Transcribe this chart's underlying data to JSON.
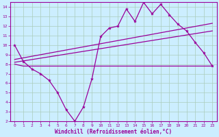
{
  "background_color": "#cceeff",
  "grid_color": "#aaccbb",
  "line_color": "#990099",
  "xlabel": "Windchill (Refroidissement éolien,°C)",
  "xlim": [
    -0.5,
    23.5
  ],
  "ylim": [
    2,
    14.5
  ],
  "xticks": [
    0,
    1,
    2,
    3,
    4,
    5,
    6,
    7,
    8,
    9,
    10,
    11,
    12,
    13,
    14,
    15,
    16,
    17,
    18,
    19,
    20,
    21,
    22,
    23
  ],
  "yticks": [
    2,
    3,
    4,
    5,
    6,
    7,
    8,
    9,
    10,
    11,
    12,
    13,
    14
  ],
  "line1_x": [
    0,
    1,
    2,
    3,
    4,
    5,
    6,
    7,
    8,
    9,
    10,
    11,
    12,
    13,
    14,
    15,
    16,
    17,
    18,
    19,
    20,
    21,
    22,
    23
  ],
  "line1_y": [
    10.0,
    8.3,
    7.5,
    7.0,
    6.3,
    5.0,
    3.2,
    2.0,
    3.5,
    6.5,
    10.9,
    11.8,
    12.0,
    13.8,
    12.5,
    14.5,
    13.3,
    14.3,
    13.2,
    12.2,
    11.5,
    10.3,
    9.2,
    7.8
  ],
  "line2_x": [
    0,
    1,
    2,
    3,
    4,
    5,
    6,
    7,
    8,
    9,
    10,
    11,
    12,
    13,
    14,
    15,
    16,
    17,
    18,
    19,
    20,
    21,
    22,
    23
  ],
  "line2_y": [
    8.0,
    7.8,
    7.8,
    7.8,
    7.8,
    7.8,
    7.8,
    7.8,
    7.8,
    7.8,
    7.8,
    7.8,
    7.8,
    7.8,
    7.8,
    7.8,
    7.8,
    7.8,
    7.8,
    7.8,
    7.8,
    7.8,
    7.8,
    7.8
  ],
  "line3_x": [
    0,
    23
  ],
  "line3_y": [
    8.2,
    11.5
  ],
  "line4_x": [
    0,
    23
  ],
  "line4_y": [
    8.5,
    12.3
  ]
}
